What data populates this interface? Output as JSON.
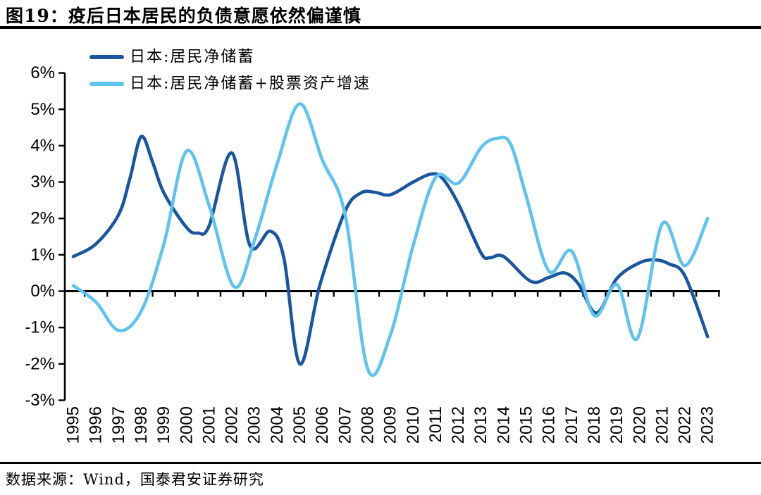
{
  "header": {
    "title": "图19：疫后日本居民的负债意愿依然偏谨慎"
  },
  "footer": {
    "source": "数据来源：Wind，国泰君安证券研究"
  },
  "colors": {
    "series1": "#1a569e",
    "series2": "#5fc3ee",
    "axis": "#000000",
    "rule": "#000000",
    "background": "#ffffff"
  },
  "chart_data": {
    "type": "line",
    "title": "图19：疫后日本居民的负债意愿依然偏谨慎",
    "xlabel": "",
    "ylabel": "",
    "y_unit": "%",
    "ylim": [
      -3,
      6
    ],
    "x_range": [
      1995,
      2023
    ],
    "grid": false,
    "zero_line": true,
    "legend_position": "top-left",
    "y_ticks": [
      {
        "value": 6,
        "label": "6%"
      },
      {
        "value": 5,
        "label": "5%"
      },
      {
        "value": 4,
        "label": "4%"
      },
      {
        "value": 3,
        "label": "3%"
      },
      {
        "value": 2,
        "label": "2%"
      },
      {
        "value": 1,
        "label": "1%"
      },
      {
        "value": 0,
        "label": "0%"
      },
      {
        "value": -1,
        "label": "-1%"
      },
      {
        "value": -2,
        "label": "-2%"
      },
      {
        "value": -3,
        "label": "-3%"
      }
    ],
    "x_ticks": [
      1995,
      1996,
      1997,
      1998,
      1999,
      2000,
      2001,
      2002,
      2003,
      2004,
      2005,
      2006,
      2007,
      2008,
      2009,
      2010,
      2011,
      2012,
      2013,
      2014,
      2015,
      2016,
      2017,
      2018,
      2019,
      2020,
      2021,
      2022,
      2023
    ],
    "series": [
      {
        "name": "日本:居民净储蓄",
        "color": "#1a569e",
        "points": [
          [
            1995,
            0.95
          ],
          [
            1996,
            1.3
          ],
          [
            1997,
            2.1
          ],
          [
            1997.5,
            3.1
          ],
          [
            1998,
            4.25
          ],
          [
            1998.5,
            3.55
          ],
          [
            1999,
            2.7
          ],
          [
            2000,
            1.75
          ],
          [
            2000.5,
            1.6
          ],
          [
            2001,
            1.8
          ],
          [
            2002,
            3.8
          ],
          [
            2002.8,
            1.25
          ],
          [
            2003.7,
            1.65
          ],
          [
            2004.3,
            0.9
          ],
          [
            2005,
            -2.0
          ],
          [
            2005.9,
            0.2
          ],
          [
            2007,
            2.2
          ],
          [
            2007.7,
            2.7
          ],
          [
            2008.3,
            2.72
          ],
          [
            2009,
            2.65
          ],
          [
            2010,
            3.0
          ],
          [
            2010.8,
            3.22
          ],
          [
            2011.3,
            3.1
          ],
          [
            2012,
            2.4
          ],
          [
            2013,
            1.05
          ],
          [
            2013.4,
            0.92
          ],
          [
            2014,
            0.95
          ],
          [
            2015.2,
            0.27
          ],
          [
            2016,
            0.38
          ],
          [
            2016.7,
            0.5
          ],
          [
            2017.3,
            0.2
          ],
          [
            2018.1,
            -0.6
          ],
          [
            2019,
            0.35
          ],
          [
            2020,
            0.78
          ],
          [
            2020.7,
            0.86
          ],
          [
            2021.3,
            0.75
          ],
          [
            2022,
            0.42
          ],
          [
            2023,
            -1.25
          ]
        ]
      },
      {
        "name": "日本:居民净储蓄+股票资产增速",
        "color": "#5fc3ee",
        "points": [
          [
            1995,
            0.15
          ],
          [
            1996,
            -0.3
          ],
          [
            1997,
            -1.08
          ],
          [
            1998,
            -0.55
          ],
          [
            1999,
            1.3
          ],
          [
            2000,
            3.85
          ],
          [
            2001,
            2.35
          ],
          [
            2002.1,
            0.12
          ],
          [
            2003,
            1.4
          ],
          [
            2004,
            3.5
          ],
          [
            2005,
            5.15
          ],
          [
            2006,
            3.6
          ],
          [
            2007,
            2.1
          ],
          [
            2008,
            -2.15
          ],
          [
            2009,
            -1.2
          ],
          [
            2010,
            1.25
          ],
          [
            2011,
            3.13
          ],
          [
            2012,
            2.97
          ],
          [
            2013,
            3.95
          ],
          [
            2013.7,
            4.2
          ],
          [
            2014.3,
            4.05
          ],
          [
            2015,
            2.6
          ],
          [
            2016,
            0.55
          ],
          [
            2017,
            1.1
          ],
          [
            2018,
            -0.67
          ],
          [
            2019,
            0.18
          ],
          [
            2019.9,
            -1.3
          ],
          [
            2021,
            1.85
          ],
          [
            2022,
            0.7
          ],
          [
            2023,
            2.0
          ]
        ]
      }
    ]
  }
}
